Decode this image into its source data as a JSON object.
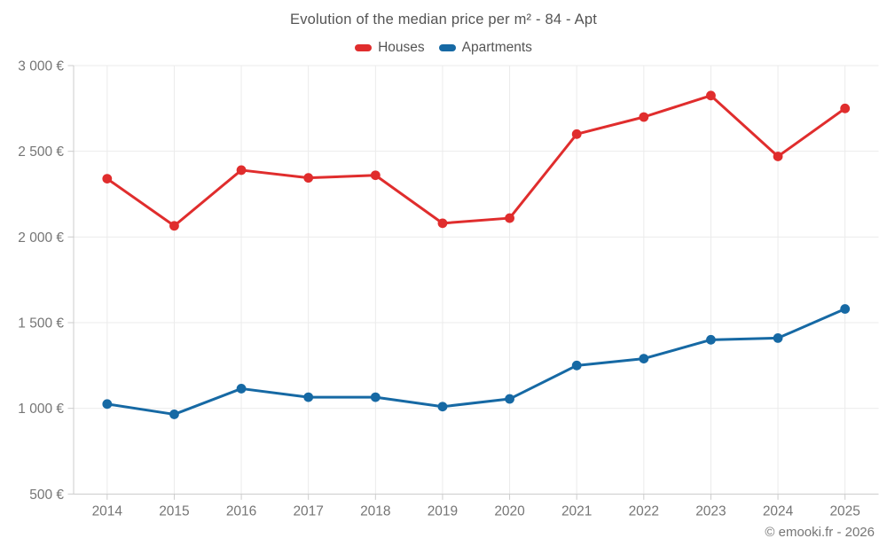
{
  "header": {
    "title": "Evolution of the median price per m² - 84 - Apt"
  },
  "legend": [
    {
      "label": "Houses",
      "color": "#e02d2d"
    },
    {
      "label": "Apartments",
      "color": "#1669a4"
    }
  ],
  "footer": {
    "credit": "© emooki.fr - 2026"
  },
  "colors": {
    "grid": "#ebebeb",
    "axis": "#cccccc",
    "tick_text": "#757575",
    "title_text": "#545454"
  },
  "chart_data": {
    "type": "line",
    "title": "Evolution of the median price per m² - 84 - Apt",
    "xlabel": "",
    "ylabel": "",
    "categories": [
      "2014",
      "2015",
      "2016",
      "2017",
      "2018",
      "2019",
      "2020",
      "2021",
      "2022",
      "2023",
      "2024",
      "2025"
    ],
    "series": [
      {
        "name": "Houses",
        "color": "#e02d2d",
        "values": [
          2340,
          2065,
          2390,
          2345,
          2360,
          2080,
          2110,
          2600,
          2700,
          2825,
          2470,
          2750
        ]
      },
      {
        "name": "Apartments",
        "color": "#1669a4",
        "values": [
          1025,
          965,
          1115,
          1065,
          1065,
          1010,
          1055,
          1250,
          1290,
          1400,
          1410,
          1580
        ]
      }
    ],
    "ylim": [
      500,
      3000
    ],
    "ytick_step": 500,
    "ytick_labels": [
      "500 €",
      "1 000 €",
      "1 500 €",
      "2 000 €",
      "2 500 €",
      "3 000 €"
    ],
    "grid": true,
    "legend_position": "top"
  }
}
